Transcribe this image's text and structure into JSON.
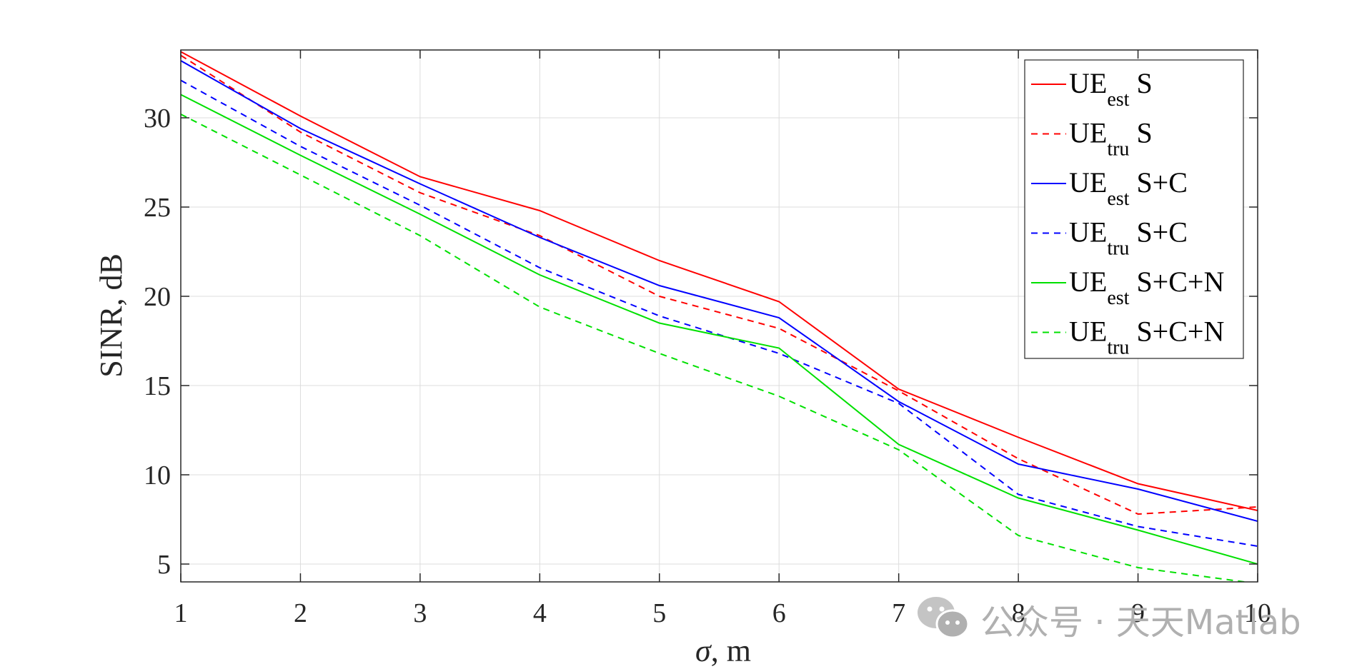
{
  "chart_data": {
    "type": "line",
    "title": "",
    "xlabel_symbol": "σ",
    "xlabel_rest": ", m",
    "ylabel": "SINR, dB",
    "xlim": [
      1,
      10
    ],
    "ylim": [
      4,
      33.8
    ],
    "xticks": [
      1,
      2,
      3,
      4,
      5,
      6,
      7,
      8,
      9,
      10
    ],
    "yticks": [
      5,
      10,
      15,
      20,
      25,
      30
    ],
    "grid": true,
    "legend_position": "top-right",
    "x": [
      1,
      2,
      3,
      4,
      5,
      6,
      7,
      8,
      9,
      10
    ],
    "series": [
      {
        "label_main": "UE",
        "label_sub": "est",
        "label_rest": "S",
        "color": "#ff0000",
        "dash": "solid",
        "values": [
          33.7,
          30.1,
          26.7,
          24.8,
          22.0,
          19.7,
          14.8,
          12.1,
          9.5,
          8.0
        ]
      },
      {
        "label_main": "UE",
        "label_sub": "tru",
        "label_rest": "S",
        "color": "#ff0000",
        "dash": "dashed",
        "values": [
          33.5,
          29.2,
          25.8,
          23.4,
          20.0,
          18.2,
          14.7,
          10.9,
          7.8,
          8.2
        ]
      },
      {
        "label_main": "UE",
        "label_sub": "est",
        "label_rest": "S+C",
        "color": "#0000ff",
        "dash": "solid",
        "values": [
          33.2,
          29.4,
          26.3,
          23.3,
          20.6,
          18.8,
          14.1,
          10.6,
          9.2,
          7.4
        ]
      },
      {
        "label_main": "UE",
        "label_sub": "tru",
        "label_rest": "S+C",
        "color": "#0000ff",
        "dash": "dashed",
        "values": [
          32.1,
          28.4,
          25.1,
          21.6,
          18.9,
          16.8,
          14.0,
          8.9,
          7.1,
          6.0
        ]
      },
      {
        "label_main": "UE",
        "label_sub": "est",
        "label_rest": "S+C+N",
        "color": "#00e000",
        "dash": "solid",
        "values": [
          31.3,
          27.9,
          24.6,
          21.2,
          18.5,
          17.1,
          11.7,
          8.7,
          6.9,
          5.0
        ]
      },
      {
        "label_main": "UE",
        "label_sub": "tru",
        "label_rest": "S+C+N",
        "color": "#00e000",
        "dash": "dashed",
        "values": [
          30.2,
          26.8,
          23.4,
          19.4,
          16.8,
          14.4,
          11.4,
          6.6,
          4.8,
          3.9
        ]
      }
    ]
  },
  "watermark": {
    "icon": "wechat-icon",
    "text": "公众号 · 天天Matlab"
  }
}
